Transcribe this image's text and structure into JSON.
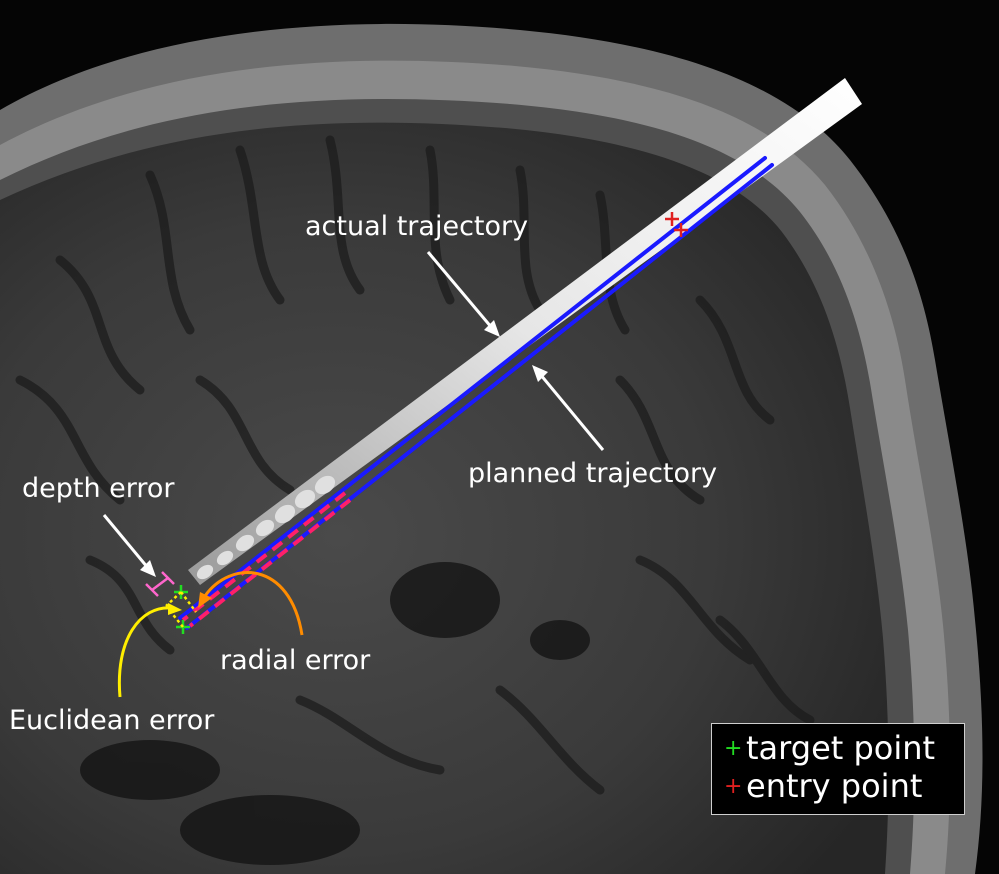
{
  "annotations": {
    "actual_trajectory": "actual trajectory",
    "planned_trajectory": "planned trajectory",
    "depth_error": "depth error",
    "radial_error": "radial error",
    "euclidean_error": "Euclidean error"
  },
  "legend": {
    "items": [
      {
        "symbol": "+",
        "label": "target point",
        "color": "#22dd22"
      },
      {
        "symbol": "+",
        "label": "entry point",
        "color": "#e02020"
      }
    ]
  },
  "colors": {
    "planned_line": "#1a1aff",
    "deviation_dash": "#ff1f6a",
    "euclidean_marker": "#ffee00",
    "radial_marker": "#ff8c00",
    "depth_marker": "#ff66cc",
    "target_marker": "#22dd22",
    "entry_marker": "#e02020"
  }
}
